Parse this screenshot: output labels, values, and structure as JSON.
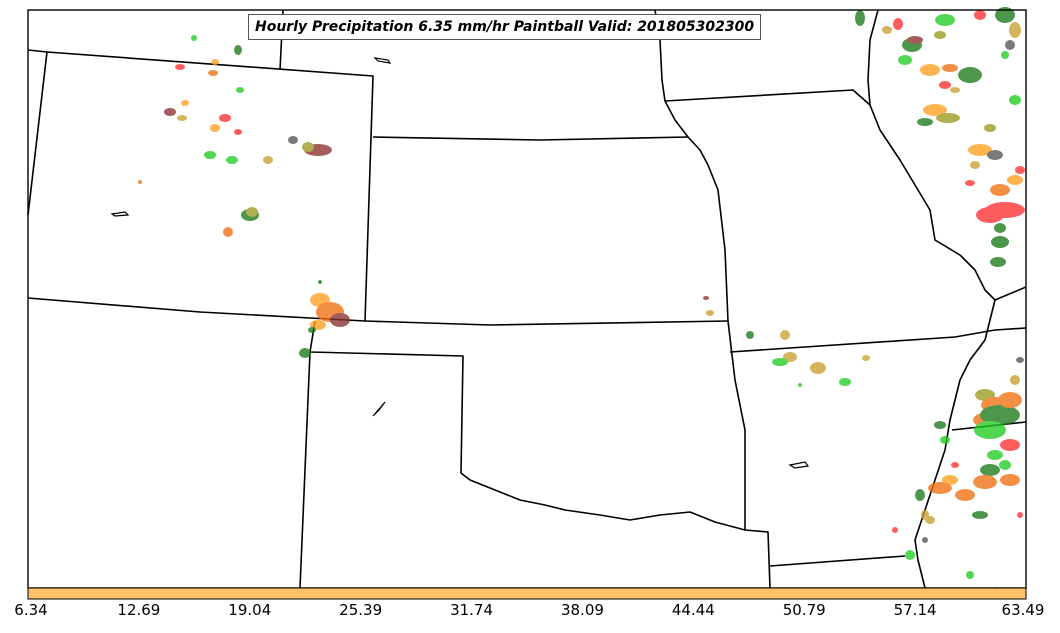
{
  "title": "Hourly Precipitation 6.35 mm/hr Paintball Valid: 201805302300",
  "colorbar": {
    "color": "#ffc266",
    "tick_labels": [
      "6.34",
      "12.69",
      "19.04",
      "25.39",
      "31.74",
      "38.09",
      "44.44",
      "50.79",
      "57.14",
      "63.49"
    ]
  },
  "member_colors": [
    "#22cc22",
    "#1a7a1a",
    "#f07010",
    "#ff3030",
    "#c8a030",
    "#9a9a20",
    "#8b3030",
    "#555555",
    "#ffa020"
  ],
  "map_style": {
    "background": "#ffffff",
    "boundary_color": "#000000"
  }
}
